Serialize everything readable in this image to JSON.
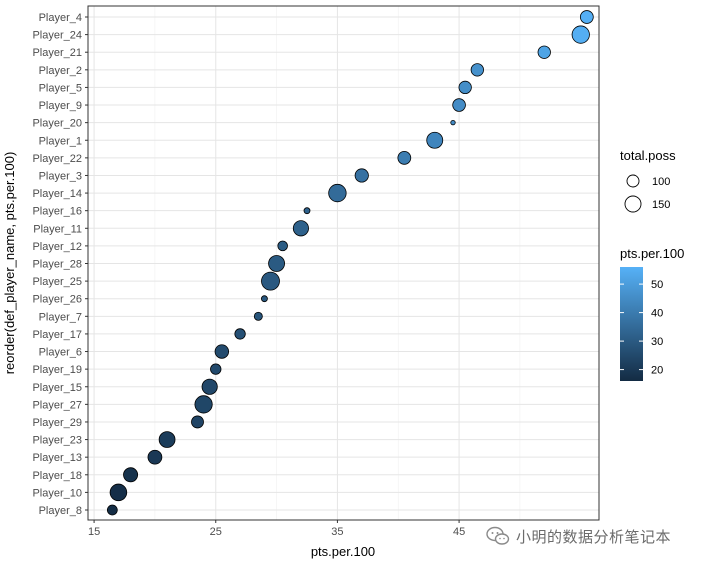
{
  "chart_data": {
    "type": "scatter",
    "xlabel": "pts.per.100",
    "ylabel": "reorder(def_player_name, pts.per.100)",
    "xlim": [
      14.5,
      56.5
    ],
    "x_ticks": [
      15,
      25,
      35,
      45
    ],
    "grid": true,
    "categories": [
      "Player_8",
      "Player_10",
      "Player_18",
      "Player_13",
      "Player_23",
      "Player_29",
      "Player_27",
      "Player_15",
      "Player_19",
      "Player_6",
      "Player_17",
      "Player_7",
      "Player_26",
      "Player_25",
      "Player_28",
      "Player_12",
      "Player_11",
      "Player_16",
      "Player_14",
      "Player_3",
      "Player_22",
      "Player_1",
      "Player_20",
      "Player_9",
      "Player_5",
      "Player_2",
      "Player_21",
      "Player_24",
      "Player_4"
    ],
    "points": [
      {
        "player": "Player_8",
        "pts_per_100": 16.5,
        "total_poss": 80
      },
      {
        "player": "Player_10",
        "pts_per_100": 17.0,
        "total_poss": 160
      },
      {
        "player": "Player_18",
        "pts_per_100": 18.0,
        "total_poss": 125
      },
      {
        "player": "Player_13",
        "pts_per_100": 20.0,
        "total_poss": 122
      },
      {
        "player": "Player_23",
        "pts_per_100": 21.0,
        "total_poss": 148
      },
      {
        "player": "Player_29",
        "pts_per_100": 23.5,
        "total_poss": 100
      },
      {
        "player": "Player_27",
        "pts_per_100": 24.0,
        "total_poss": 170
      },
      {
        "player": "Player_15",
        "pts_per_100": 24.5,
        "total_poss": 140
      },
      {
        "player": "Player_19",
        "pts_per_100": 25.0,
        "total_poss": 85
      },
      {
        "player": "Player_6",
        "pts_per_100": 25.5,
        "total_poss": 118
      },
      {
        "player": "Player_17",
        "pts_per_100": 27.0,
        "total_poss": 85
      },
      {
        "player": "Player_7",
        "pts_per_100": 28.5,
        "total_poss": 65
      },
      {
        "player": "Player_26",
        "pts_per_100": 29.0,
        "total_poss": 52
      },
      {
        "player": "Player_25",
        "pts_per_100": 29.5,
        "total_poss": 180
      },
      {
        "player": "Player_28",
        "pts_per_100": 30.0,
        "total_poss": 150
      },
      {
        "player": "Player_12",
        "pts_per_100": 30.5,
        "total_poss": 78
      },
      {
        "player": "Player_11",
        "pts_per_100": 32.0,
        "total_poss": 140
      },
      {
        "player": "Player_16",
        "pts_per_100": 32.5,
        "total_poss": 52
      },
      {
        "player": "Player_14",
        "pts_per_100": 35.0,
        "total_poss": 172
      },
      {
        "player": "Player_3",
        "pts_per_100": 37.0,
        "total_poss": 115
      },
      {
        "player": "Player_22",
        "pts_per_100": 40.5,
        "total_poss": 110
      },
      {
        "player": "Player_1",
        "pts_per_100": 43.0,
        "total_poss": 150
      },
      {
        "player": "Player_20",
        "pts_per_100": 44.5,
        "total_poss": 45
      },
      {
        "player": "Player_9",
        "pts_per_100": 45.0,
        "total_poss": 108
      },
      {
        "player": "Player_5",
        "pts_per_100": 45.5,
        "total_poss": 105
      },
      {
        "player": "Player_2",
        "pts_per_100": 46.5,
        "total_poss": 105
      },
      {
        "player": "Player_21",
        "pts_per_100": 52.0,
        "total_poss": 105
      },
      {
        "player": "Player_24",
        "pts_per_100": 55.0,
        "total_poss": 170
      },
      {
        "player": "Player_4",
        "pts_per_100": 55.5,
        "total_poss": 110
      }
    ],
    "legend_size": {
      "title": "total.poss",
      "entries": [
        {
          "label": "100",
          "value": 100
        },
        {
          "label": "150",
          "value": 150
        }
      ]
    },
    "legend_color": {
      "title": "pts.per.100",
      "range": [
        16,
        56
      ],
      "ticks": [
        {
          "label": "20",
          "value": 20
        },
        {
          "label": "30",
          "value": 30
        },
        {
          "label": "40",
          "value": 40
        },
        {
          "label": "50",
          "value": 50
        }
      ],
      "low_color": "#132B43",
      "high_color": "#56B1F7"
    },
    "legend_placement": "right"
  },
  "watermark": {
    "text": "小明的数据分析笔记本",
    "icon": "wechat-icon"
  }
}
